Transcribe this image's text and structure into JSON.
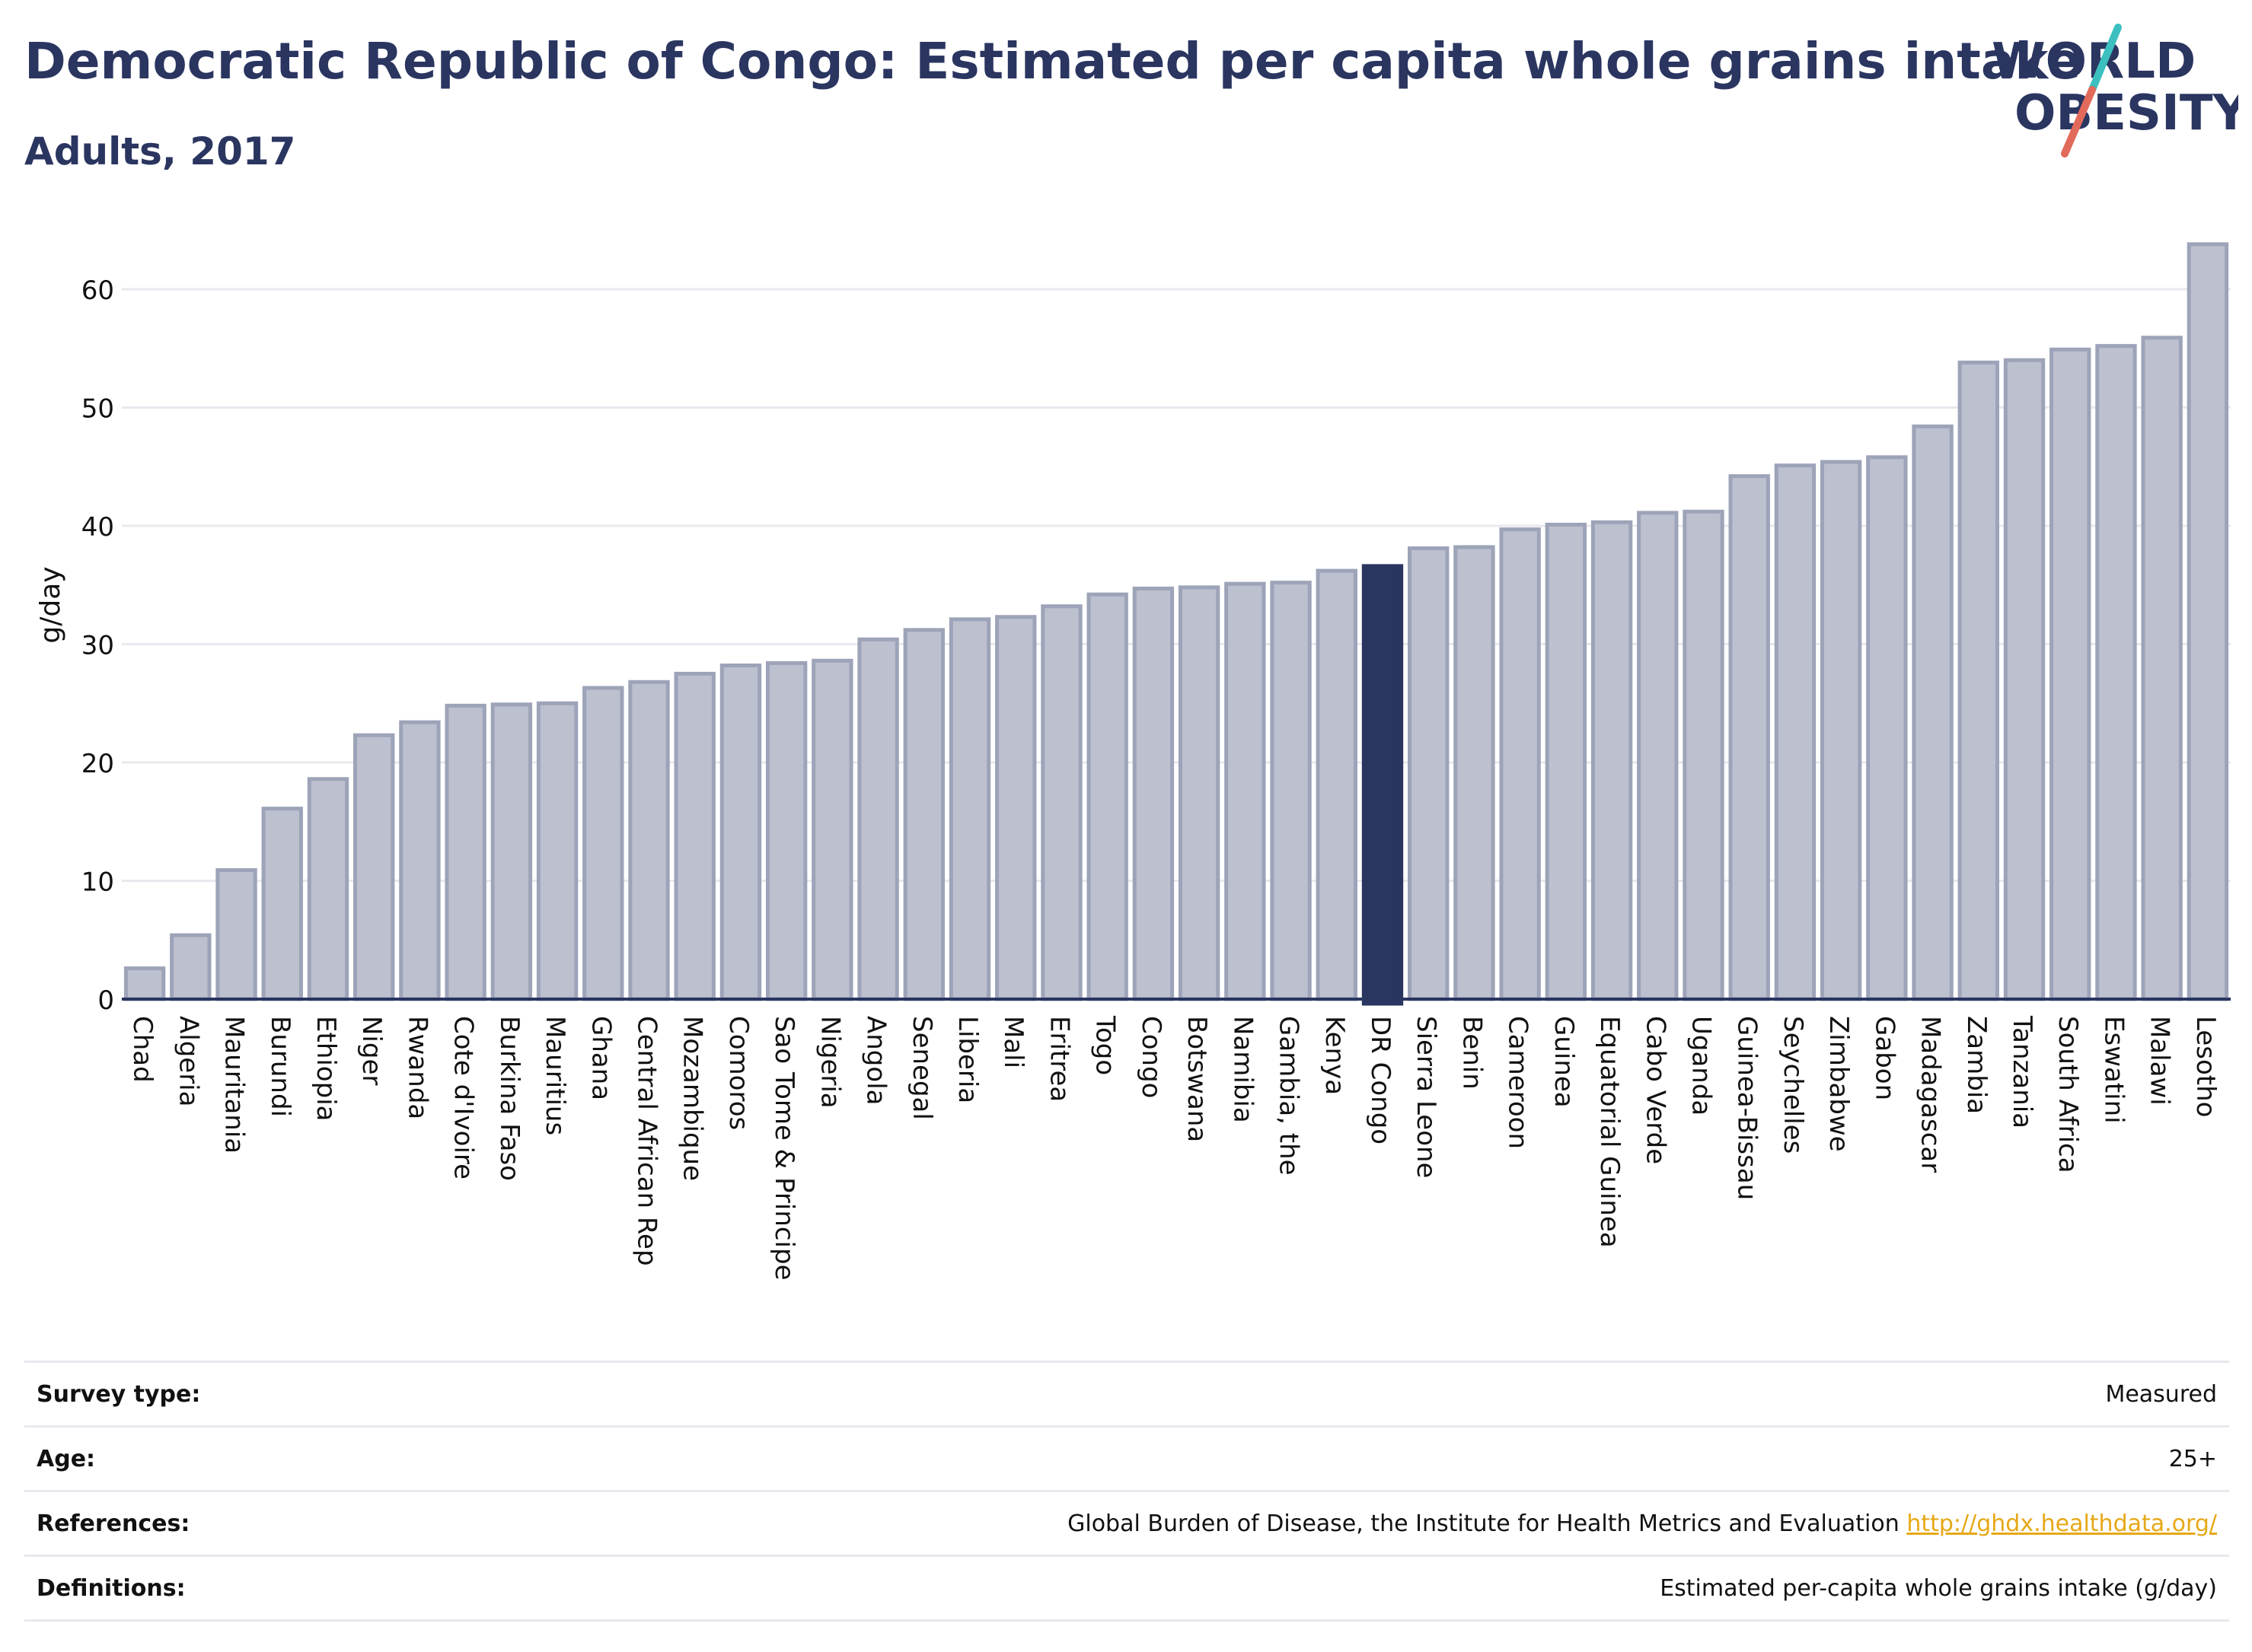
{
  "header": {
    "title": "Democratic Republic of Congo: Estimated per capita whole grains intake",
    "subtitle": "Adults, 2017"
  },
  "logo": {
    "line1": "WORLD",
    "line2": "OBESITY",
    "text_color": "#2a3560",
    "slash_colors": [
      "#3bbfbf",
      "#e26a5a"
    ]
  },
  "colors": {
    "bar": "#bcc0cf",
    "bar_stroke": "#9da3b8",
    "highlight": "#2a3560",
    "grid": "#e8e8ee",
    "axis": "#2a3560"
  },
  "chart_data": {
    "type": "bar",
    "ylabel": "g/day",
    "ylim": [
      0,
      65
    ],
    "yticks": [
      0,
      10,
      20,
      30,
      40,
      50,
      60
    ],
    "grid": true,
    "highlight": "DR Congo",
    "categories": [
      "Chad",
      "Algeria",
      "Mauritania",
      "Burundi",
      "Ethiopia",
      "Niger",
      "Rwanda",
      "Cote d'Ivoire",
      "Burkina Faso",
      "Mauritius",
      "Ghana",
      "Central African Rep",
      "Mozambique",
      "Comoros",
      "Sao Tome & Principe",
      "Nigeria",
      "Angola",
      "Senegal",
      "Liberia",
      "Mali",
      "Eritrea",
      "Togo",
      "Congo",
      "Botswana",
      "Namibia",
      "Gambia, the",
      "Kenya",
      "DR Congo",
      "Sierra Leone",
      "Benin",
      "Cameroon",
      "Guinea",
      "Equatorial Guinea",
      "Cabo Verde",
      "Uganda",
      "Guinea-Bissau",
      "Seychelles",
      "Zimbabwe",
      "Gabon",
      "Madagascar",
      "Zambia",
      "Tanzania",
      "South Africa",
      "Eswatini",
      "Malawi",
      "Lesotho"
    ],
    "values": [
      2.6,
      5.4,
      10.9,
      16.1,
      18.6,
      22.3,
      23.4,
      24.8,
      24.9,
      25.0,
      26.3,
      26.8,
      27.5,
      28.2,
      28.4,
      28.6,
      30.4,
      31.2,
      32.1,
      32.3,
      33.2,
      34.2,
      34.7,
      34.8,
      35.1,
      35.2,
      36.2,
      36.6,
      38.1,
      38.2,
      39.7,
      40.1,
      40.3,
      41.1,
      41.2,
      44.2,
      45.1,
      45.4,
      45.8,
      48.4,
      53.8,
      54.0,
      54.9,
      55.2,
      55.9,
      63.8
    ]
  },
  "info": {
    "rows": [
      {
        "label": "Survey type:",
        "value": "Measured"
      },
      {
        "label": "Age:",
        "value": "25+"
      },
      {
        "label": "References:",
        "value": "Global Burden of Disease, the Institute for Health Metrics and Evaluation",
        "link": "http://ghdx.healthdata.org/"
      },
      {
        "label": "Definitions:",
        "value": "Estimated per-capita whole grains intake (g/day)"
      }
    ]
  }
}
